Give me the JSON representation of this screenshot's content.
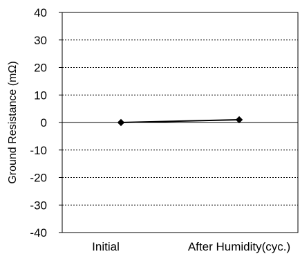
{
  "chart_data": {
    "type": "line",
    "title": "",
    "xlabel": "",
    "ylabel": "Ground Resistance (mΩ)",
    "ylim": [
      -40,
      40
    ],
    "yticks": [
      40,
      30,
      20,
      10,
      0,
      -10,
      -20,
      -30,
      -40
    ],
    "categories": [
      "Initial",
      "After Humidity(cyc.)"
    ],
    "series": [
      {
        "values": [
          0,
          1
        ]
      }
    ],
    "grid": "horizontal dashed",
    "legend": "none",
    "colors": {
      "line": "#000000",
      "marker": "#000000",
      "grid": "#000000",
      "frame": "#000000"
    },
    "marker": "diamond"
  }
}
